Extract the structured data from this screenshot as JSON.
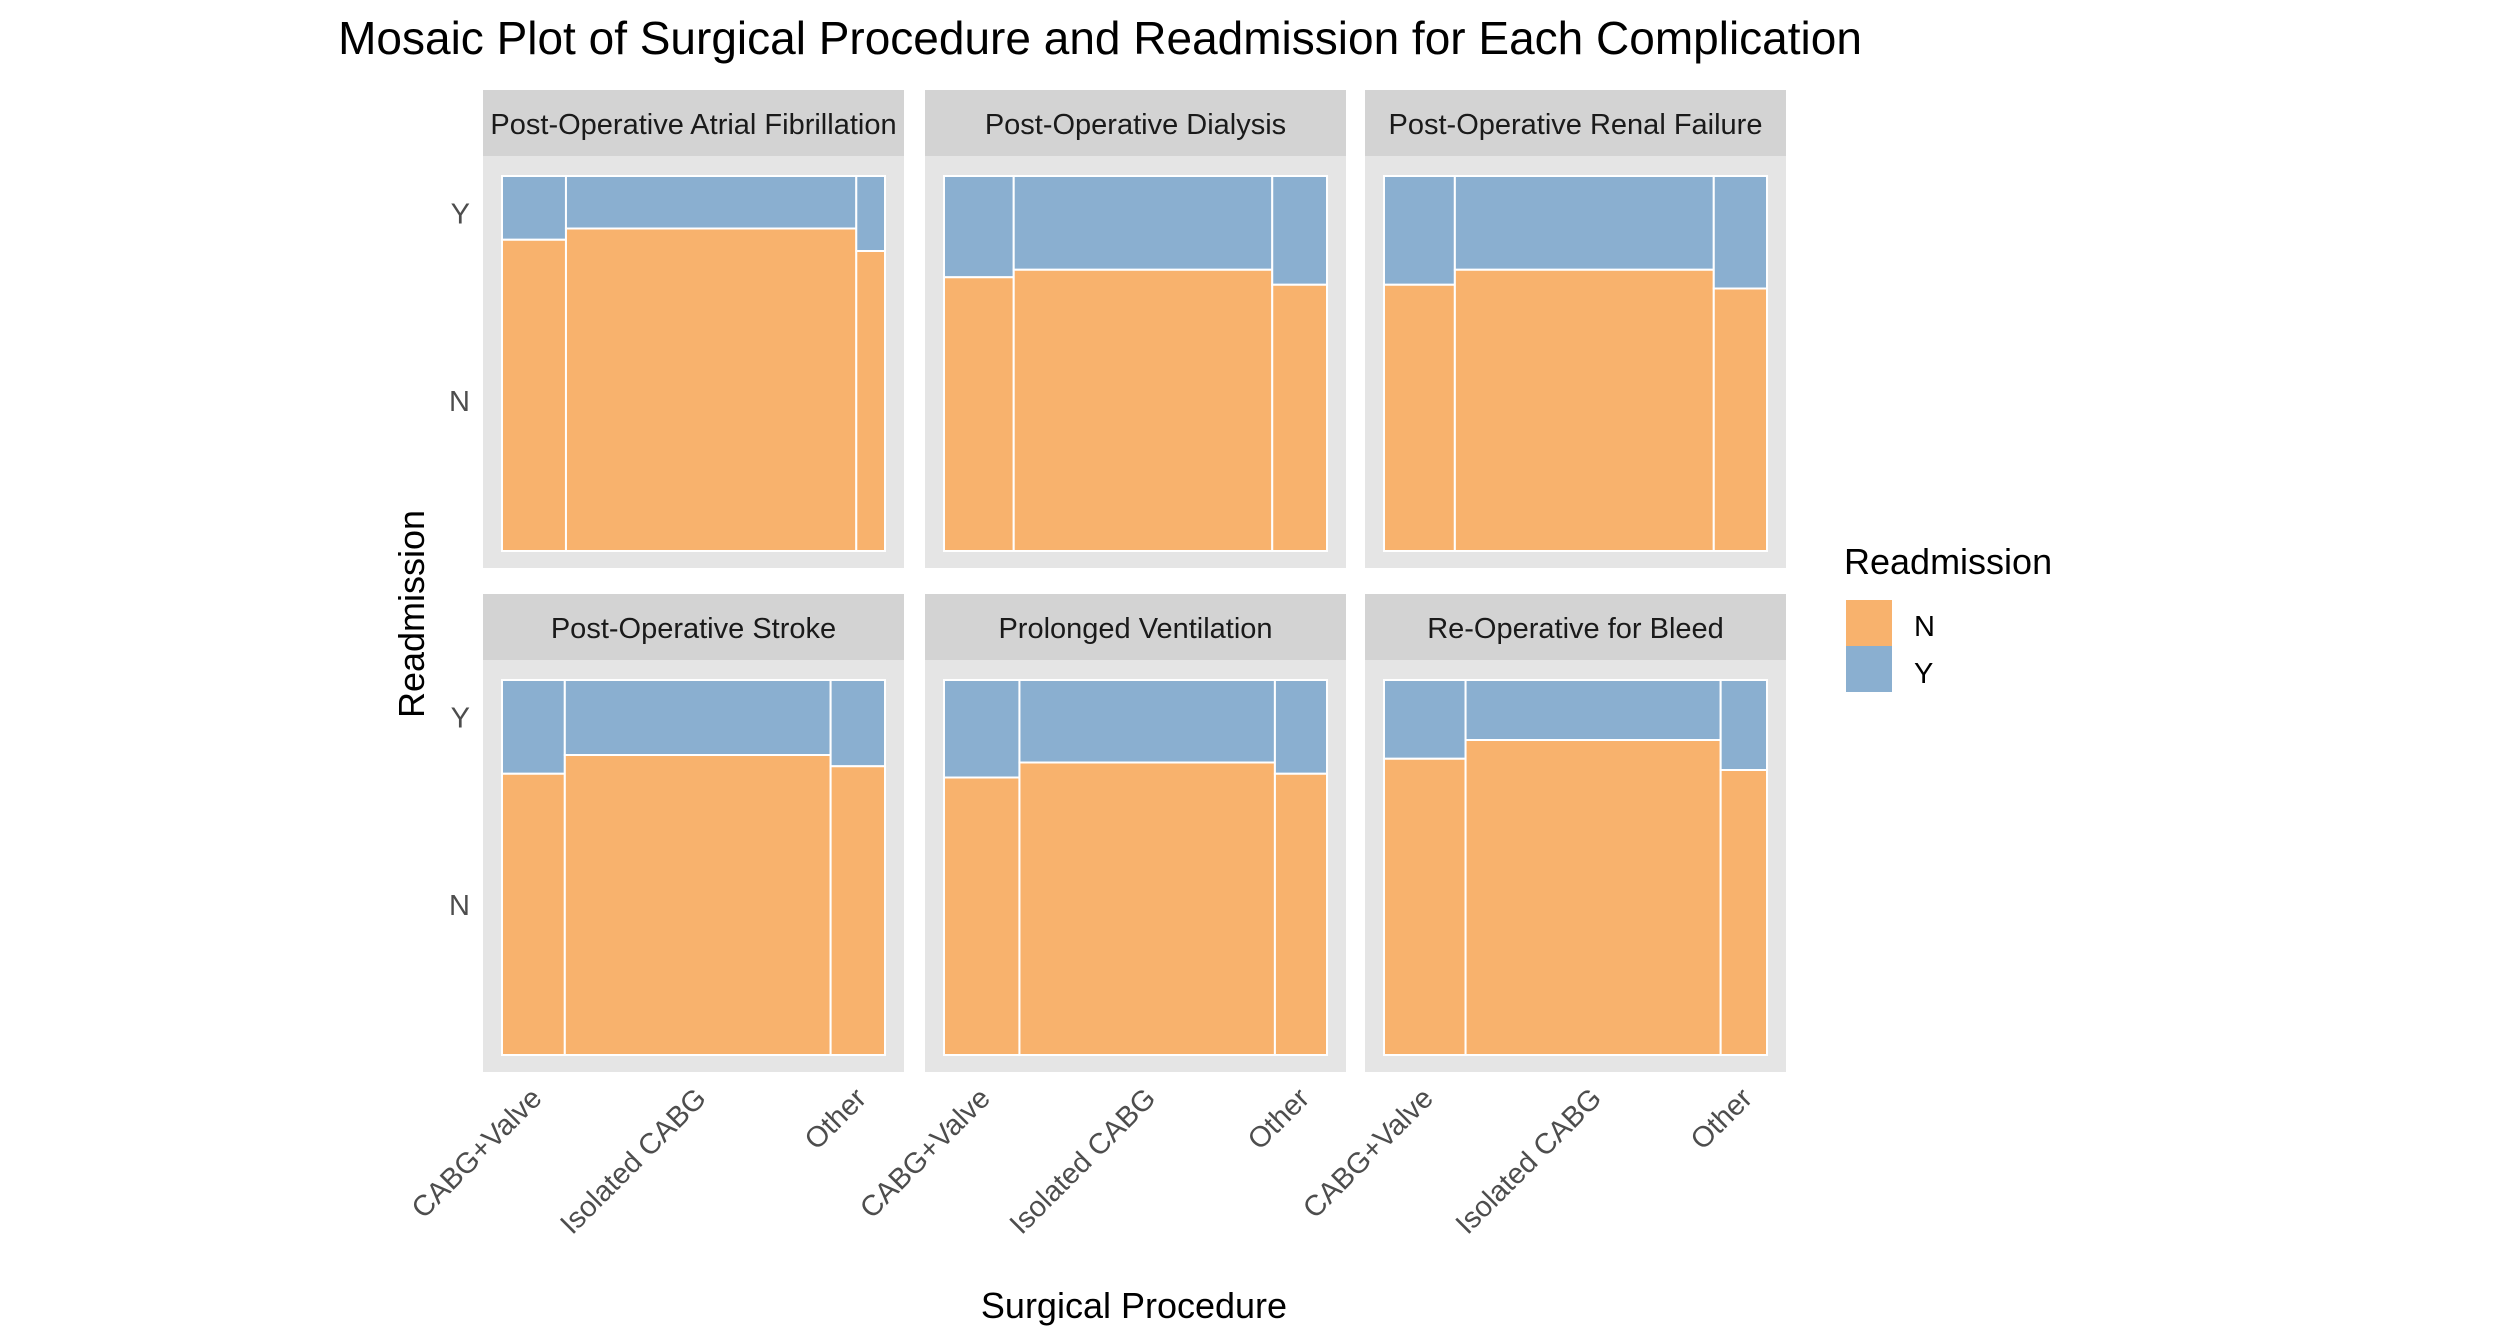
{
  "chart_data": {
    "type": "mosaic",
    "title": "Mosaic Plot of Surgical Procedure and Readmission for Each Complication",
    "xlabel": "Surgical Procedure",
    "ylabel": "Readmission",
    "categories": [
      "CABG+Valve",
      "Isolated CABG",
      "Other"
    ],
    "levels": [
      "N",
      "Y"
    ],
    "legend": {
      "title": "Readmission",
      "position": "right",
      "entries": [
        {
          "label": "N",
          "color": "#F8B26D"
        },
        {
          "label": "Y",
          "color": "#8AAFD0"
        }
      ]
    },
    "panel_background": "#E5E5E5",
    "strip_background": "#D3D3D3",
    "panels": [
      {
        "strip": "Post-Operative Atrial Fibrillation",
        "column_shares": [
          0.167,
          0.758,
          0.075
        ],
        "readmission_Y_share": [
          0.17,
          0.14,
          0.2
        ]
      },
      {
        "strip": "Post-Operative Dialysis",
        "column_shares": [
          0.182,
          0.675,
          0.143
        ],
        "readmission_Y_share": [
          0.27,
          0.25,
          0.29
        ]
      },
      {
        "strip": "Post-Operative Renal Failure",
        "column_shares": [
          0.185,
          0.676,
          0.139
        ],
        "readmission_Y_share": [
          0.29,
          0.25,
          0.3
        ]
      },
      {
        "strip": "Post-Operative Stroke",
        "column_shares": [
          0.164,
          0.694,
          0.142
        ],
        "readmission_Y_share": [
          0.25,
          0.2,
          0.23
        ]
      },
      {
        "strip": "Prolonged Ventilation",
        "column_shares": [
          0.197,
          0.667,
          0.136
        ],
        "readmission_Y_share": [
          0.26,
          0.22,
          0.25
        ]
      },
      {
        "strip": "Re-Operative for Bleed",
        "column_shares": [
          0.213,
          0.666,
          0.121
        ],
        "readmission_Y_share": [
          0.21,
          0.16,
          0.24
        ]
      }
    ]
  }
}
